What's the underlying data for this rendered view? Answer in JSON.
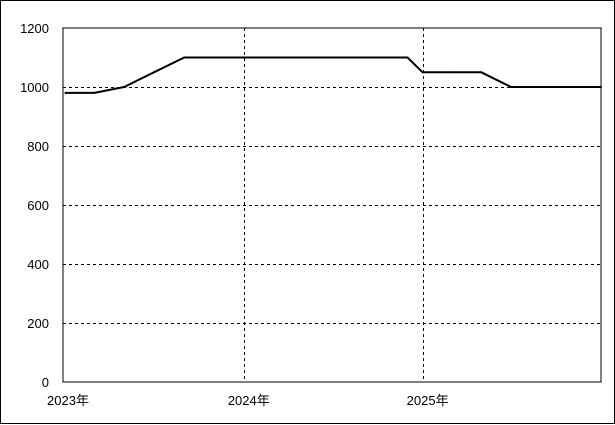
{
  "chart_data": {
    "type": "line",
    "title": "",
    "xlabel": "",
    "ylabel": "",
    "ylim": [
      0,
      1200
    ],
    "yticks": [
      0,
      200,
      400,
      600,
      800,
      1000,
      1200
    ],
    "xlim": [
      "2022-12-27",
      "2026-01-01"
    ],
    "xticks": [
      {
        "label": "2023年",
        "date": "2022-12-27"
      },
      {
        "label": "2024年",
        "date": "2024-01-01"
      },
      {
        "label": "2025年",
        "date": "2025-01-01"
      }
    ],
    "grid": "dashed",
    "series": [
      {
        "color": "#000000",
        "points": [
          {
            "x": "2023-01-01",
            "y": 980
          },
          {
            "x": "2023-03-01",
            "y": 980
          },
          {
            "x": "2023-05-01",
            "y": 1000
          },
          {
            "x": "2023-07-01",
            "y": 1050
          },
          {
            "x": "2023-09-01",
            "y": 1100
          },
          {
            "x": "2023-11-01",
            "y": 1100
          },
          {
            "x": "2024-01-01",
            "y": 1100
          },
          {
            "x": "2024-03-01",
            "y": 1100
          },
          {
            "x": "2024-05-01",
            "y": 1100
          },
          {
            "x": "2024-07-01",
            "y": 1100
          },
          {
            "x": "2024-09-01",
            "y": 1100
          },
          {
            "x": "2024-11-01",
            "y": 1100
          },
          {
            "x": "2024-12-01",
            "y": 1100
          },
          {
            "x": "2025-01-01",
            "y": 1050
          },
          {
            "x": "2025-03-01",
            "y": 1050
          },
          {
            "x": "2025-05-01",
            "y": 1050
          },
          {
            "x": "2025-07-01",
            "y": 1000
          },
          {
            "x": "2025-09-01",
            "y": 1000
          },
          {
            "x": "2025-11-01",
            "y": 1000
          },
          {
            "x": "2026-01-01",
            "y": 1000
          }
        ]
      }
    ]
  }
}
